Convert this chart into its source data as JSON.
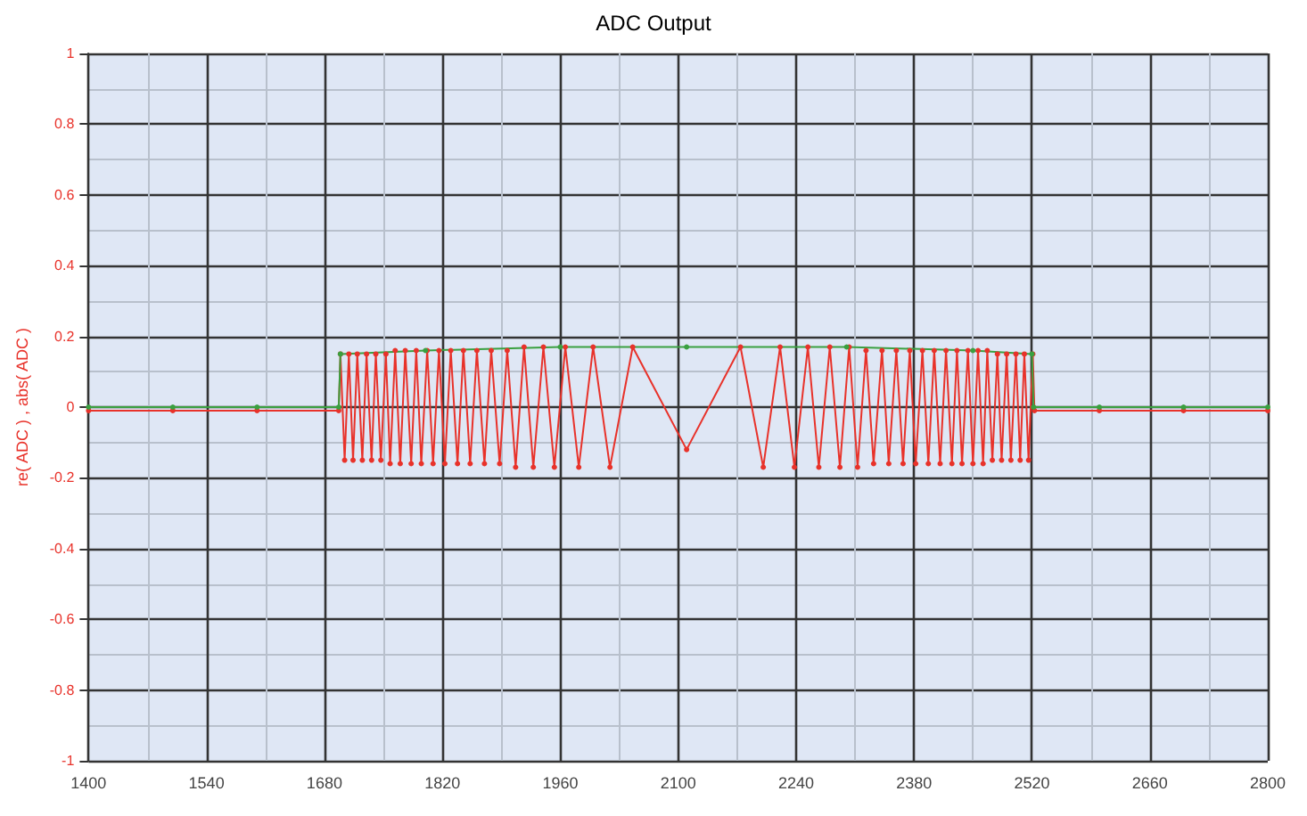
{
  "chart_data": {
    "type": "line",
    "title": "ADC Output",
    "ylabel": "re( ADC ) , abs( ADC )",
    "xlim": [
      1400,
      2800
    ],
    "xticks": [
      1400,
      1540,
      1680,
      1820,
      1960,
      2100,
      2240,
      2380,
      2520,
      2660,
      2800
    ],
    "ylim": [
      -1,
      1
    ],
    "yticks": [
      -1,
      -0.8,
      -0.6,
      -0.4,
      -0.2,
      0,
      0.2,
      0.4,
      0.6,
      0.8,
      1
    ],
    "grid": true,
    "marker": "circle",
    "line_style": "solid",
    "series": [
      {
        "color": "#e8322a",
        "x": [
          1400,
          1500,
          1600,
          1697,
          1699,
          1704,
          1709,
          1714,
          1719,
          1725,
          1730,
          1736,
          1741,
          1747,
          1753,
          1758,
          1764,
          1770,
          1776,
          1783,
          1789,
          1795,
          1802,
          1809,
          1816,
          1823,
          1830,
          1838,
          1845,
          1853,
          1861,
          1870,
          1878,
          1888,
          1897,
          1907,
          1917,
          1928,
          1940,
          1953,
          1966,
          1982,
          1999,
          2019,
          2046,
          2110,
          2174,
          2201,
          2221,
          2238,
          2254,
          2267,
          2280,
          2292,
          2303,
          2313,
          2323,
          2332,
          2342,
          2350,
          2359,
          2367,
          2375,
          2382,
          2390,
          2397,
          2404,
          2411,
          2418,
          2425,
          2431,
          2437,
          2444,
          2450,
          2456,
          2462,
          2467,
          2473,
          2479,
          2484,
          2490,
          2495,
          2501,
          2506,
          2511,
          2516,
          2521,
          2523,
          2600,
          2700,
          2800
        ],
        "values": [
          -0.01,
          -0.01,
          -0.01,
          -0.01,
          0.15,
          -0.15,
          0.15,
          -0.15,
          0.15,
          -0.15,
          0.15,
          -0.15,
          0.15,
          -0.15,
          0.15,
          -0.16,
          0.16,
          -0.16,
          0.16,
          -0.16,
          0.16,
          -0.16,
          0.16,
          -0.16,
          0.16,
          -0.16,
          0.16,
          -0.16,
          0.16,
          -0.16,
          0.16,
          -0.16,
          0.16,
          -0.16,
          0.16,
          -0.17,
          0.17,
          -0.17,
          0.17,
          -0.17,
          0.17,
          -0.17,
          0.17,
          -0.17,
          0.17,
          -0.12,
          0.17,
          -0.17,
          0.17,
          -0.17,
          0.17,
          -0.17,
          0.17,
          -0.17,
          0.17,
          -0.17,
          0.16,
          -0.16,
          0.16,
          -0.16,
          0.16,
          -0.16,
          0.16,
          -0.16,
          0.16,
          -0.16,
          0.16,
          -0.16,
          0.16,
          -0.16,
          0.16,
          -0.16,
          0.16,
          -0.16,
          0.16,
          -0.16,
          0.16,
          -0.15,
          0.15,
          -0.15,
          0.15,
          -0.15,
          0.15,
          -0.15,
          0.15,
          -0.15,
          0.15,
          -0.01,
          -0.01,
          -0.01,
          -0.01
        ]
      },
      {
        "color": "#3aa040",
        "x": [
          1400,
          1500,
          1600,
          1697,
          1699,
          1800,
          1960,
          2110,
          2300,
          2450,
          2520,
          2522,
          2600,
          2700,
          2800
        ],
        "values": [
          0,
          0,
          0,
          0,
          0.15,
          0.16,
          0.17,
          0.17,
          0.17,
          0.16,
          0.15,
          0,
          0,
          0,
          0
        ]
      }
    ]
  }
}
